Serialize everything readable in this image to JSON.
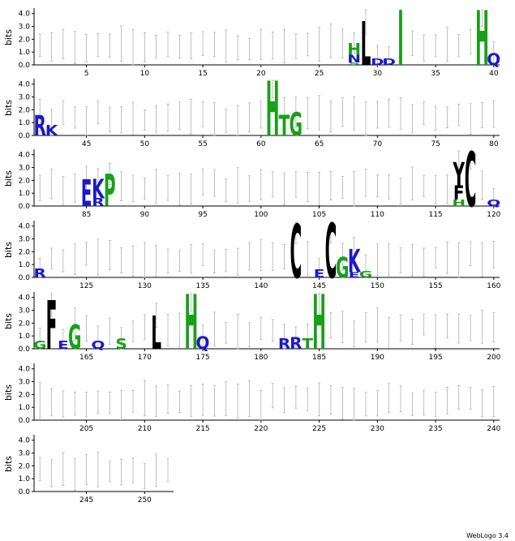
{
  "chart_data": {
    "type": "sequence-logo",
    "ylabel": "bits",
    "ylim": [
      0,
      4.3
    ],
    "yticks": [
      "0.0",
      "1.0",
      "2.0",
      "3.0",
      "4.0"
    ],
    "sequence_length": 252,
    "positions_per_row": 40,
    "colors": {
      "basic": "#1a1ac8",
      "hydrophobic": "#000000",
      "polar": "#18a018",
      "bar": "#999999"
    },
    "rows": [
      {
        "start": 1,
        "end": 40,
        "xticks": [
          "5",
          "10",
          "15",
          "20",
          "25",
          "30",
          "35",
          "40"
        ],
        "letters": [
          {
            "pos": 28,
            "stack": [
              [
                "S",
                0.2,
                "polar"
              ],
              [
                "N",
                0.6,
                "basic"
              ],
              [
                "H",
                0.9,
                "polar"
              ]
            ]
          },
          {
            "pos": 29,
            "stack": [
              [
                "L",
                3.4,
                "hydrophobic"
              ]
            ]
          },
          {
            "pos": 30,
            "stack": [
              [
                "D",
                0.5,
                "basic"
              ]
            ]
          },
          {
            "pos": 31,
            "stack": [
              [
                "D",
                0.5,
                "basic"
              ]
            ]
          },
          {
            "pos": 32,
            "stack": [
              [
                "I",
                4.3,
                "polar"
              ]
            ]
          },
          {
            "pos": 39,
            "stack": [
              [
                "H",
                4.3,
                "polar"
              ]
            ]
          },
          {
            "pos": 40,
            "stack": [
              [
                "Q",
                0.9,
                "basic"
              ]
            ]
          }
        ]
      },
      {
        "start": 41,
        "end": 80,
        "xticks": [
          "45",
          "50",
          "55",
          "60",
          "65",
          "70",
          "75",
          "80"
        ],
        "letters": [
          {
            "pos": 41,
            "stack": [
              [
                "R",
                1.6,
                "basic"
              ]
            ]
          },
          {
            "pos": 42,
            "stack": [
              [
                "K",
                0.8,
                "basic"
              ]
            ]
          },
          {
            "pos": 61,
            "stack": [
              [
                "H",
                4.3,
                "polar"
              ]
            ]
          },
          {
            "pos": 62,
            "stack": [
              [
                "T",
                1.6,
                "polar"
              ]
            ]
          },
          {
            "pos": 63,
            "stack": [
              [
                "G",
                1.8,
                "polar"
              ]
            ]
          }
        ]
      },
      {
        "start": 81,
        "end": 120,
        "xticks": [
          "85",
          "90",
          "95",
          "100",
          "105",
          "110",
          "115",
          "120"
        ],
        "letters": [
          {
            "pos": 85,
            "stack": [
              [
                "E",
                2.1,
                "basic"
              ]
            ]
          },
          {
            "pos": 86,
            "stack": [
              [
                "R",
                0.6,
                "basic"
              ],
              [
                "K",
                1.5,
                "basic"
              ]
            ]
          },
          {
            "pos": 87,
            "stack": [
              [
                "P",
                2.5,
                "polar"
              ]
            ]
          },
          {
            "pos": 117,
            "stack": [
              [
                "H",
                0.5,
                "polar"
              ],
              [
                "F",
                1.1,
                "hydrophobic"
              ],
              [
                "Y",
                1.8,
                "hydrophobic"
              ]
            ]
          },
          {
            "pos": 118,
            "stack": [
              [
                "C",
                4.3,
                "hydrophobic"
              ]
            ]
          },
          {
            "pos": 120,
            "stack": [
              [
                "Q",
                0.5,
                "basic"
              ]
            ]
          }
        ]
      },
      {
        "start": 121,
        "end": 160,
        "xticks": [
          "125",
          "130",
          "135",
          "140",
          "145",
          "150",
          "155",
          "160"
        ],
        "letters": [
          {
            "pos": 121,
            "stack": [
              [
                "R",
                0.7,
                "basic"
              ]
            ]
          },
          {
            "pos": 143,
            "stack": [
              [
                "C",
                4.2,
                "hydrophobic"
              ]
            ]
          },
          {
            "pos": 145,
            "stack": [
              [
                "E",
                0.6,
                "basic"
              ]
            ]
          },
          {
            "pos": 146,
            "stack": [
              [
                "C",
                4.3,
                "hydrophobic"
              ]
            ]
          },
          {
            "pos": 147,
            "stack": [
              [
                "G",
                1.6,
                "polar"
              ]
            ]
          },
          {
            "pos": 148,
            "stack": [
              [
                "E",
                0.4,
                "basic"
              ],
              [
                "K",
                1.8,
                "basic"
              ]
            ]
          },
          {
            "pos": 149,
            "stack": [
              [
                "G",
                0.5,
                "polar"
              ]
            ]
          }
        ]
      },
      {
        "start": 161,
        "end": 200,
        "xticks": [
          "165",
          "170",
          "175",
          "180",
          "185",
          "190",
          "195",
          "200"
        ],
        "letters": [
          {
            "pos": 161,
            "stack": [
              [
                "G",
                0.6,
                "polar"
              ]
            ]
          },
          {
            "pos": 162,
            "stack": [
              [
                "F",
                3.8,
                "hydrophobic"
              ]
            ]
          },
          {
            "pos": 163,
            "stack": [
              [
                "E",
                0.6,
                "basic"
              ]
            ]
          },
          {
            "pos": 164,
            "stack": [
              [
                "G",
                1.9,
                "polar"
              ]
            ]
          },
          {
            "pos": 166,
            "stack": [
              [
                "Q",
                0.6,
                "basic"
              ]
            ]
          },
          {
            "pos": 168,
            "stack": [
              [
                "S",
                0.8,
                "polar"
              ]
            ]
          },
          {
            "pos": 171,
            "stack": [
              [
                "L",
                2.6,
                "hydrophobic"
              ]
            ]
          },
          {
            "pos": 174,
            "stack": [
              [
                "H",
                4.3,
                "polar"
              ]
            ]
          },
          {
            "pos": 175,
            "stack": [
              [
                "Q",
                1.0,
                "basic"
              ]
            ]
          },
          {
            "pos": 182,
            "stack": [
              [
                "R",
                0.8,
                "basic"
              ]
            ]
          },
          {
            "pos": 183,
            "stack": [
              [
                "R",
                0.9,
                "basic"
              ]
            ]
          },
          {
            "pos": 184,
            "stack": [
              [
                "T",
                0.8,
                "polar"
              ]
            ]
          },
          {
            "pos": 185,
            "stack": [
              [
                "H",
                4.3,
                "polar"
              ]
            ]
          }
        ]
      },
      {
        "start": 201,
        "end": 240,
        "xticks": [
          "205",
          "210",
          "215",
          "220",
          "225",
          "230",
          "235",
          "240"
        ],
        "letters": []
      },
      {
        "start": 241,
        "end": 252,
        "xticks": [
          "245",
          "250"
        ],
        "letters": []
      }
    ]
  },
  "footer": {
    "text": "WebLogo 3.4"
  }
}
